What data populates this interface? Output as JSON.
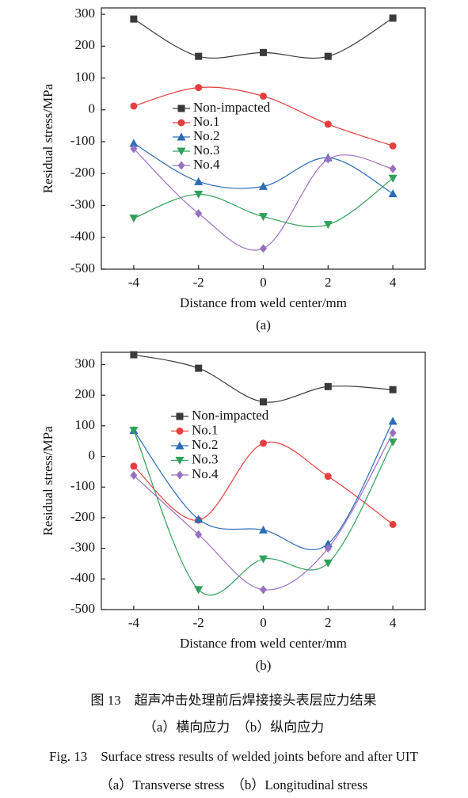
{
  "chart_data": [
    {
      "type": "line",
      "panel_label": "(a)",
      "xlabel": "Distance from weld center/mm",
      "ylabel": "Residual stress/MPa",
      "xlim": [
        -5,
        5
      ],
      "xticks": [
        -4,
        -2,
        0,
        2,
        4
      ],
      "ylim": [
        -500,
        320
      ],
      "yticks": [
        -500,
        -400,
        -300,
        -200,
        -100,
        0,
        100,
        200,
        300
      ],
      "x": [
        -4,
        -2,
        0,
        2,
        4
      ],
      "legend": "center",
      "smooth": true,
      "series": [
        {
          "name": "Non-impacted",
          "color": "#3a3a3a",
          "marker": "square",
          "values": [
            285,
            168,
            180,
            168,
            288
          ]
        },
        {
          "name": "No.1",
          "color": "#e43f3f",
          "marker": "circle",
          "values": [
            12,
            70,
            43,
            -45,
            -113
          ]
        },
        {
          "name": "No.2",
          "color": "#2b6cb8",
          "marker": "triangle-up",
          "values": [
            -105,
            -225,
            -240,
            -150,
            -263
          ]
        },
        {
          "name": "No.3",
          "color": "#2ea05a",
          "marker": "triangle-down",
          "values": [
            -340,
            -265,
            -335,
            -360,
            -215
          ]
        },
        {
          "name": "No.4",
          "color": "#9a70c2",
          "marker": "diamond",
          "values": [
            -122,
            -325,
            -435,
            -155,
            -185
          ]
        }
      ]
    },
    {
      "type": "line",
      "panel_label": "(b)",
      "xlabel": "Distance from weld center/mm",
      "ylabel": "Residual stress/MPa",
      "xlim": [
        -5,
        5
      ],
      "xticks": [
        -4,
        -2,
        0,
        2,
        4
      ],
      "ylim": [
        -500,
        340
      ],
      "yticks": [
        -500,
        -400,
        -300,
        -200,
        -100,
        0,
        100,
        200,
        300
      ],
      "x": [
        -4,
        -2,
        0,
        2,
        4
      ],
      "legend": "center",
      "smooth": true,
      "series": [
        {
          "name": "Non-impacted",
          "color": "#3a3a3a",
          "marker": "square",
          "values": [
            332,
            288,
            178,
            228,
            218
          ]
        },
        {
          "name": "No.1",
          "color": "#e43f3f",
          "marker": "circle",
          "values": [
            -32,
            -208,
            43,
            -65,
            -222
          ]
        },
        {
          "name": "No.2",
          "color": "#2b6cb8",
          "marker": "triangle-up",
          "values": [
            85,
            -205,
            -240,
            -285,
            115
          ]
        },
        {
          "name": "No.3",
          "color": "#2ea05a",
          "marker": "triangle-down",
          "values": [
            85,
            -435,
            -335,
            -348,
            47
          ]
        },
        {
          "name": "No.4",
          "color": "#9a70c2",
          "marker": "diamond",
          "values": [
            -62,
            -255,
            -435,
            -300,
            77
          ]
        }
      ]
    }
  ],
  "caption": {
    "cn_title": "图 13　超声冲击处理前后焊接接头表层应力结果",
    "cn_sub": "（a）横向应力　（b）纵向应力",
    "en_title": "Fig. 13　Surface stress results of welded joints before and after UIT",
    "en_sub": "（a）Transverse stress　（b）Longitudinal stress"
  }
}
